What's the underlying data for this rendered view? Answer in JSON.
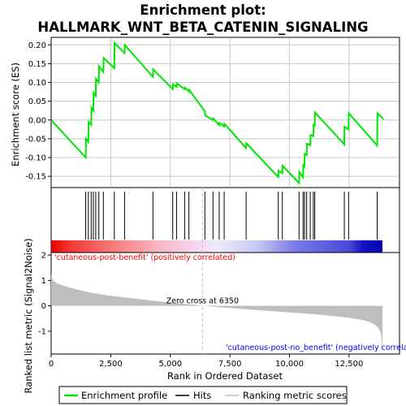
{
  "title_line1": "Enrichment plot:",
  "title_line2": "HALLMARK_WNT_BETA_CATENIN_SIGNALING",
  "colors": {
    "es_line": "#00e600",
    "hits": "#000000",
    "metric_fill": "#bebebe",
    "zero_cross": "#c0c0c0",
    "pos_label": "#ff0000",
    "neg_label": "#0000ff",
    "grid": "#c8c8c8"
  },
  "legend": {
    "es": "Enrichment profile",
    "hits": "Hits",
    "metric": "Ranking metric scores"
  },
  "chart_data": [
    {
      "type": "line",
      "panel": "enrichment",
      "ylabel": "Enrichment score (ES)",
      "xlim": [
        0,
        14000
      ],
      "ylim": [
        -0.18,
        0.22
      ],
      "yticks": [
        0.2,
        0.15,
        0.1,
        0.05,
        0.0,
        -0.05,
        -0.1,
        -0.15
      ],
      "ytick_labels": [
        "0.20",
        "0.15",
        "0.10",
        "0.05",
        "0.00",
        "-0.05",
        "-0.10",
        "-0.15"
      ],
      "grid": true,
      "series": [
        {
          "x": [
            0,
            1450,
            1460,
            1560,
            1570,
            1680,
            1690,
            1770,
            1780,
            1870,
            1880,
            2000,
            2010,
            2190,
            2200,
            2650,
            2660,
            3080,
            3090,
            4270,
            4280,
            5100,
            5110,
            5260,
            5270,
            5600,
            5610,
            5780,
            5790,
            6450,
            6460,
            6790,
            6800,
            7050,
            7060,
            7260,
            7270,
            8180,
            8190,
            9530,
            9540,
            9700,
            9710,
            10400,
            10410,
            10570,
            10580,
            10630,
            10640,
            10720,
            10730,
            10870,
            10880,
            11000,
            11010,
            11060,
            11070,
            12300,
            12310,
            12480,
            12490,
            13680,
            13690,
            13950
          ],
          "y": [
            0.0,
            -0.1,
            -0.05,
            -0.058,
            -0.005,
            -0.013,
            0.033,
            0.025,
            0.072,
            0.064,
            0.11,
            0.1,
            0.143,
            0.128,
            0.165,
            0.138,
            0.205,
            0.178,
            0.2,
            0.115,
            0.135,
            0.082,
            0.095,
            0.088,
            0.097,
            0.082,
            0.086,
            0.076,
            0.08,
            0.023,
            0.012,
            -0.0,
            0.004,
            -0.014,
            -0.008,
            -0.017,
            -0.01,
            -0.075,
            -0.062,
            -0.152,
            -0.135,
            -0.142,
            -0.122,
            -0.168,
            -0.138,
            -0.153,
            -0.12,
            -0.123,
            -0.09,
            -0.093,
            -0.063,
            -0.067,
            -0.04,
            -0.043,
            -0.013,
            -0.015,
            0.02,
            -0.065,
            -0.018,
            -0.025,
            0.018,
            -0.068,
            0.018,
            0.002
          ]
        }
      ]
    },
    {
      "type": "scatter",
      "panel": "hits",
      "xlim": [
        0,
        14000
      ],
      "hit_ranks": [
        1450,
        1560,
        1680,
        1770,
        1870,
        2000,
        2190,
        2650,
        3080,
        4270,
        5100,
        5260,
        5600,
        5780,
        6450,
        6790,
        7050,
        7260,
        8180,
        9530,
        9700,
        10400,
        10570,
        10630,
        10720,
        10870,
        11000,
        11060,
        12300,
        12480,
        13680
      ]
    },
    {
      "type": "area",
      "panel": "ranking_metric",
      "xlabel": "Rank in Ordered Dataset",
      "ylabel": "Ranked list metric (Signal2Noise)",
      "xlim": [
        0,
        14000
      ],
      "ylim": [
        -1.9,
        2.1
      ],
      "xticks": [
        0,
        2500,
        5000,
        7500,
        10000,
        12500
      ],
      "xtick_labels": [
        "0",
        "2,500",
        "5,000",
        "7,500",
        "10,000",
        "12,500"
      ],
      "yticks": [
        2,
        1,
        0,
        -1
      ],
      "ytick_labels": [
        "2",
        "1",
        "0",
        "-1"
      ],
      "x": [
        0,
        30,
        100,
        250,
        500,
        1000,
        1500,
        2000,
        3000,
        4000,
        5000,
        6000,
        6350,
        7000,
        8000,
        9000,
        10000,
        11000,
        12000,
        12500,
        13000,
        13300,
        13500,
        13650,
        13750,
        13820,
        13870,
        13900
      ],
      "y": [
        1.25,
        1.1,
        0.98,
        0.88,
        0.8,
        0.66,
        0.55,
        0.46,
        0.34,
        0.23,
        0.13,
        0.04,
        0.0,
        -0.05,
        -0.12,
        -0.19,
        -0.26,
        -0.33,
        -0.42,
        -0.47,
        -0.55,
        -0.62,
        -0.7,
        -0.8,
        -0.9,
        -1.05,
        -1.35,
        -1.9
      ],
      "zero_cross_label": "Zero cross at 6350",
      "zero_cross_rank": 6350,
      "pos_label": "'cutaneous-post-benefit' (positively correlated)",
      "neg_label": "'cutaneous-post-no_benefit' (negatively correlated)"
    }
  ]
}
